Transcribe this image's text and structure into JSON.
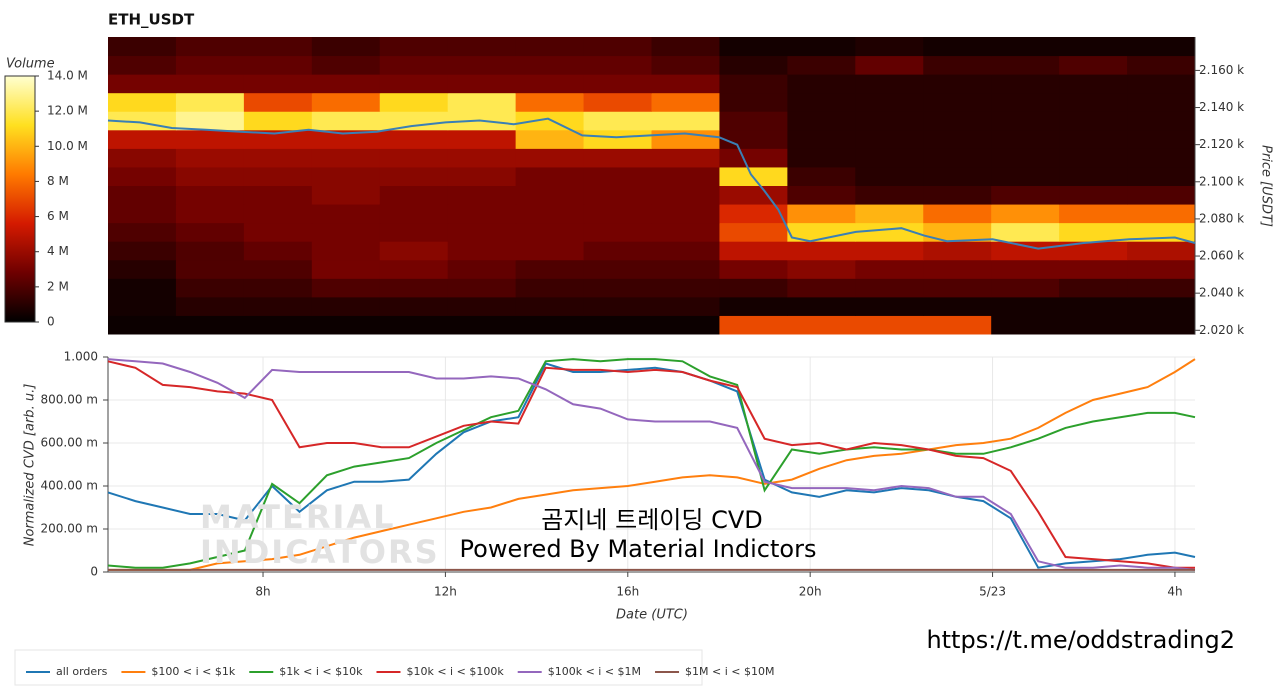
{
  "chart_data": [
    {
      "type": "heatmap",
      "title": "ETH_USDT",
      "ylabel": "Price [USDT]",
      "colorbar_label": "Volume",
      "xlim": [
        4.6,
        28.44
      ],
      "ylim": [
        2018,
        2178
      ],
      "yticks": [
        {
          "value": 2020,
          "label": "2.020 k"
        },
        {
          "value": 2040,
          "label": "2.040 k"
        },
        {
          "value": 2060,
          "label": "2.060 k"
        },
        {
          "value": 2080,
          "label": "2.080 k"
        },
        {
          "value": 2100,
          "label": "2.100 k"
        },
        {
          "value": 2120,
          "label": "2.120 k"
        },
        {
          "value": 2140,
          "label": "2.140 k"
        },
        {
          "value": 2160,
          "label": "2.160 k"
        }
      ],
      "zlim": [
        0,
        14
      ],
      "zticks": [
        0,
        {
          "value": 2,
          "label": "2 M"
        },
        {
          "value": 4,
          "label": "4 M"
        },
        {
          "value": 6,
          "label": "6 M"
        },
        {
          "value": 8,
          "label": "8 M"
        },
        {
          "value": 10,
          "label": "10.0 M"
        },
        {
          "value": 12,
          "label": "12.0 M"
        },
        {
          "value": 14,
          "label": "14.0 M"
        }
      ],
      "colormap": [
        "#000000",
        "#6e0000",
        "#d41a00",
        "#ff7a00",
        "#ffe020",
        "#ffffd0"
      ],
      "x_bins": [
        4.6,
        6.09,
        7.58,
        9.07,
        10.56,
        12.05,
        13.54,
        15.03,
        16.52,
        18.01,
        19.5,
        20.99,
        22.48,
        23.97,
        25.46,
        26.95,
        28.44
      ],
      "y_bins": [
        2018,
        2028,
        2038,
        2048,
        2058,
        2068,
        2078,
        2088,
        2098,
        2108,
        2118,
        2128,
        2138,
        2148,
        2158,
        2168,
        2178
      ],
      "z": [
        [
          0.3,
          0.3,
          0.3,
          0.3,
          0.3,
          0.3,
          0.3,
          0.3,
          0.3,
          7,
          7,
          7,
          7,
          0.5,
          0.5,
          0.5
        ],
        [
          0.5,
          1,
          1,
          1,
          1,
          1,
          1,
          1,
          1,
          0.5,
          0.5,
          0.5,
          0.5,
          0.5,
          0.5,
          0.5
        ],
        [
          0.5,
          1.5,
          1.5,
          2,
          2,
          2,
          1.5,
          1.5,
          1.5,
          1.5,
          2,
          2,
          2,
          2,
          1.5,
          1.5
        ],
        [
          1,
          2,
          2,
          3,
          3,
          2.5,
          2,
          2,
          2,
          3,
          3.5,
          3,
          3,
          3,
          3,
          3
        ],
        [
          1.5,
          2,
          2.5,
          3,
          3.5,
          3,
          3,
          2.5,
          2.5,
          5,
          5,
          5,
          4.5,
          5,
          5,
          4.5
        ],
        [
          2,
          2.5,
          3,
          3,
          3,
          3,
          3,
          3,
          3,
          7,
          11,
          11,
          10,
          12,
          11,
          11
        ],
        [
          2.5,
          3,
          3,
          3,
          3,
          3,
          3,
          3,
          3,
          6,
          9,
          10,
          8,
          9,
          8,
          8
        ],
        [
          2.5,
          3,
          3,
          3.5,
          3,
          3,
          3,
          3,
          3,
          4,
          2,
          1.5,
          1.5,
          2,
          2,
          2
        ],
        [
          3,
          3.5,
          3.5,
          3.5,
          3.5,
          3.5,
          3,
          3,
          3,
          11,
          1.5,
          1,
          1,
          1,
          1,
          1
        ],
        [
          3.5,
          4,
          4,
          4,
          4,
          4,
          4,
          4,
          4,
          3,
          1,
          1,
          1,
          1,
          1,
          1
        ],
        [
          5,
          5,
          5,
          5,
          5,
          5,
          10,
          11,
          9,
          2,
          1,
          1,
          1,
          1,
          1,
          1
        ],
        [
          12,
          13,
          11,
          12,
          12,
          12,
          11,
          12,
          12,
          2,
          1,
          1,
          1,
          1,
          1,
          1
        ],
        [
          11,
          12,
          7,
          8,
          11,
          12,
          8,
          7,
          8,
          1.5,
          1,
          1,
          1,
          1,
          1,
          1
        ],
        [
          3,
          3,
          3,
          3,
          3,
          3,
          3,
          3,
          3,
          1.5,
          1,
          1,
          1,
          1,
          1,
          1
        ],
        [
          2,
          2.5,
          2.5,
          2,
          2.5,
          2.5,
          2.5,
          2.5,
          2,
          1,
          1.5,
          2.5,
          1.5,
          1.5,
          2,
          1.5
        ],
        [
          1.5,
          2,
          2,
          1.5,
          2,
          2,
          2,
          2,
          1.5,
          0.5,
          0.5,
          0.8,
          0.5,
          0.5,
          0.5,
          0.5
        ]
      ],
      "line": {
        "color": "#3a7fb5",
        "x": [
          4.6,
          5.3,
          6,
          6.75,
          7.5,
          8.25,
          9,
          9.75,
          10.5,
          11.25,
          12,
          12.75,
          13.5,
          14.25,
          15,
          15.75,
          16.5,
          17.25,
          18,
          18.4,
          18.7,
          19,
          19.3,
          19.6,
          20,
          21,
          22,
          22.5,
          23,
          24,
          25,
          26,
          27,
          28,
          28.44
        ],
        "values": [
          2133,
          2132,
          2129,
          2128,
          2127,
          2126,
          2128,
          2126,
          2127,
          2130,
          2132,
          2133,
          2131,
          2134,
          2125,
          2124,
          2125,
          2126,
          2124,
          2120,
          2104,
          2095,
          2085,
          2070,
          2068,
          2073,
          2075,
          2071,
          2068,
          2069,
          2064,
          2067,
          2069,
          2070,
          2067
        ]
      }
    },
    {
      "type": "line",
      "ylabel": "Normalized CVD [arb. u.]",
      "xlabel": "Date (UTC)",
      "xlim": [
        4.6,
        28.44
      ],
      "ylim": [
        0,
        1
      ],
      "xticks": [
        {
          "value": 8,
          "label": "8h"
        },
        {
          "value": 12,
          "label": "12h"
        },
        {
          "value": 16,
          "label": "16h"
        },
        {
          "value": 20,
          "label": "20h"
        },
        {
          "value": 24,
          "label": "5/23"
        },
        {
          "value": 28,
          "label": "4h"
        }
      ],
      "yticks": [
        0,
        {
          "value": 0.2,
          "label": "200.00 m"
        },
        {
          "value": 0.4,
          "label": "400.00 m"
        },
        {
          "value": 0.6,
          "label": "600.00 m"
        },
        {
          "value": 0.8,
          "label": "800.00 m"
        },
        {
          "value": 1,
          "label": "1.000"
        }
      ],
      "grid": true,
      "x": [
        4.6,
        5.2,
        5.8,
        6.4,
        7,
        7.6,
        8.2,
        8.8,
        9.4,
        10,
        10.6,
        11.2,
        11.8,
        12.4,
        13,
        13.6,
        14.2,
        14.8,
        15.4,
        16,
        16.6,
        17.2,
        17.8,
        18.4,
        19,
        19.6,
        20.2,
        20.8,
        21.4,
        22,
        22.6,
        23.2,
        23.8,
        24.4,
        25,
        25.6,
        26.2,
        26.8,
        27.4,
        28,
        28.44
      ],
      "series": [
        {
          "name": "all orders",
          "color": "#1f77b4",
          "values": [
            0.37,
            0.33,
            0.3,
            0.27,
            0.27,
            0.24,
            0.4,
            0.28,
            0.38,
            0.42,
            0.42,
            0.43,
            0.55,
            0.65,
            0.7,
            0.72,
            0.97,
            0.93,
            0.93,
            0.94,
            0.95,
            0.93,
            0.89,
            0.84,
            0.43,
            0.37,
            0.35,
            0.38,
            0.37,
            0.39,
            0.38,
            0.35,
            0.33,
            0.25,
            0.02,
            0.04,
            0.05,
            0.06,
            0.08,
            0.09,
            0.07
          ]
        },
        {
          "name": "$100 < i < $1k",
          "color": "#ff7f0e",
          "values": [
            0.01,
            0.01,
            0.01,
            0.01,
            0.04,
            0.05,
            0.06,
            0.08,
            0.12,
            0.16,
            0.19,
            0.22,
            0.25,
            0.28,
            0.3,
            0.34,
            0.36,
            0.38,
            0.39,
            0.4,
            0.42,
            0.44,
            0.45,
            0.44,
            0.41,
            0.43,
            0.48,
            0.52,
            0.54,
            0.55,
            0.57,
            0.59,
            0.6,
            0.62,
            0.67,
            0.74,
            0.8,
            0.83,
            0.86,
            0.93,
            0.99
          ]
        },
        {
          "name": "$1k < i < $10k",
          "color": "#2ca02c",
          "values": [
            0.03,
            0.02,
            0.02,
            0.04,
            0.07,
            0.1,
            0.41,
            0.32,
            0.45,
            0.49,
            0.51,
            0.53,
            0.6,
            0.66,
            0.72,
            0.75,
            0.98,
            0.99,
            0.98,
            0.99,
            0.99,
            0.98,
            0.91,
            0.87,
            0.38,
            0.57,
            0.55,
            0.57,
            0.58,
            0.57,
            0.57,
            0.55,
            0.55,
            0.58,
            0.62,
            0.67,
            0.7,
            0.72,
            0.74,
            0.74,
            0.72
          ]
        },
        {
          "name": "$10k < i < $100k",
          "color": "#d62728",
          "values": [
            0.98,
            0.95,
            0.87,
            0.86,
            0.84,
            0.83,
            0.8,
            0.58,
            0.6,
            0.6,
            0.58,
            0.58,
            0.63,
            0.68,
            0.7,
            0.69,
            0.95,
            0.94,
            0.94,
            0.93,
            0.94,
            0.93,
            0.89,
            0.86,
            0.62,
            0.59,
            0.6,
            0.57,
            0.6,
            0.59,
            0.57,
            0.54,
            0.53,
            0.47,
            0.28,
            0.07,
            0.06,
            0.05,
            0.04,
            0.02,
            0.02
          ]
        },
        {
          "name": "$100k < i < $1M",
          "color": "#9467bd",
          "values": [
            0.99,
            0.98,
            0.97,
            0.93,
            0.88,
            0.81,
            0.94,
            0.93,
            0.93,
            0.93,
            0.93,
            0.93,
            0.9,
            0.9,
            0.91,
            0.9,
            0.85,
            0.78,
            0.76,
            0.71,
            0.7,
            0.7,
            0.7,
            0.67,
            0.42,
            0.39,
            0.39,
            0.39,
            0.38,
            0.4,
            0.39,
            0.35,
            0.35,
            0.27,
            0.05,
            0.02,
            0.02,
            0.03,
            0.02,
            0.02,
            0.01
          ]
        },
        {
          "name": "$1M < i < $10M",
          "color": "#8c564b",
          "values": [
            0.01,
            0.01,
            0.01,
            0.01,
            0.01,
            0.01,
            0.01,
            0.01,
            0.01,
            0.01,
            0.01,
            0.01,
            0.01,
            0.01,
            0.01,
            0.01,
            0.01,
            0.01,
            0.01,
            0.01,
            0.01,
            0.01,
            0.01,
            0.01,
            0.01,
            0.01,
            0.01,
            0.01,
            0.01,
            0.01,
            0.01,
            0.01,
            0.01,
            0.01,
            0.01,
            0.01,
            0.01,
            0.01,
            0.01,
            0.01,
            0.01
          ]
        }
      ],
      "watermark": [
        "MATERIAL",
        "INDICATORS"
      ],
      "annotations": [
        "곰지네 트레이딩 CVD",
        "Powered By Material Indictors"
      ]
    }
  ],
  "caption": "https://t.me/oddstrading2"
}
